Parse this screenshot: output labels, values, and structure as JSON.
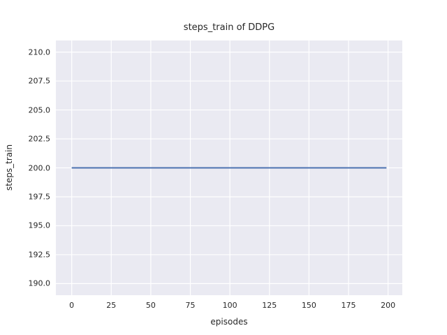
{
  "chart_data": {
    "type": "line",
    "title": "steps_train of DDPG",
    "xlabel": "episodes",
    "ylabel": "steps_train",
    "xlim": [
      -10,
      209
    ],
    "ylim": [
      189,
      211
    ],
    "grid": true,
    "legend": null,
    "xticks": {
      "values": [
        0,
        25,
        50,
        75,
        100,
        125,
        150,
        175,
        200
      ],
      "labels": [
        "0",
        "25",
        "50",
        "75",
        "100",
        "125",
        "150",
        "175",
        "200"
      ]
    },
    "yticks": {
      "values": [
        190,
        192.5,
        195,
        197.5,
        200,
        202.5,
        205,
        207.5,
        210
      ],
      "labels": [
        "190.0",
        "192.5",
        "195.0",
        "197.5",
        "200.0",
        "202.5",
        "205.0",
        "207.5",
        "210.0"
      ]
    },
    "series": [
      {
        "name": "steps_train",
        "color": "#4C72B0",
        "x": [
          0,
          199
        ],
        "y": [
          200,
          200
        ],
        "description": "constant value of 200 training steps for every episode from 0 to 199"
      }
    ],
    "style": {
      "axes_background": "#EAEAF2",
      "grid_color": "#FFFFFF",
      "text_color": "#262626",
      "line_width": 2
    }
  }
}
